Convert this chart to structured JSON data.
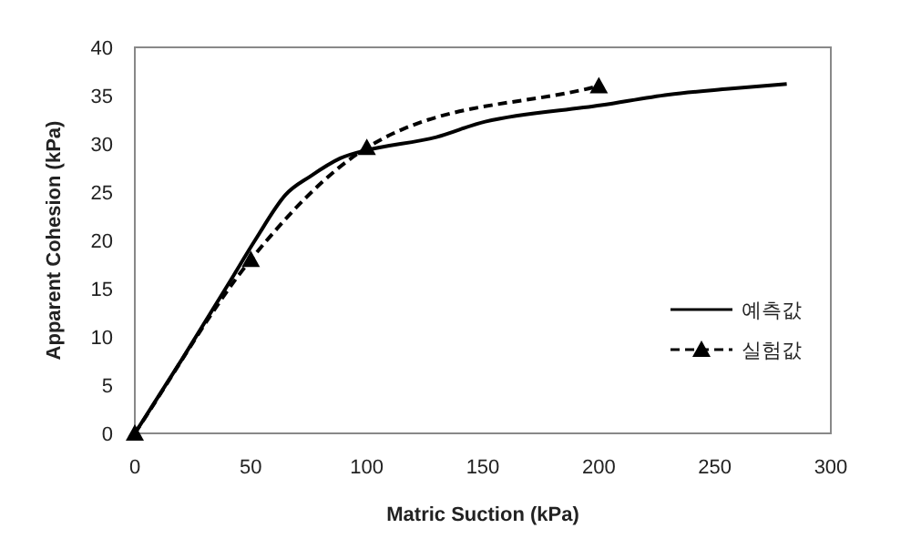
{
  "chart_data": {
    "type": "line",
    "xlabel": "Matric Suction (kPa)",
    "ylabel": "Apparent Cohesion (kPa)",
    "xlim": [
      0,
      300
    ],
    "xticks": [
      0,
      50,
      100,
      150,
      200,
      250,
      300
    ],
    "ylim": [
      0,
      40
    ],
    "yticks": [
      0,
      5,
      10,
      15,
      20,
      25,
      30,
      35,
      40
    ],
    "grid": false,
    "legend": "right",
    "series": [
      {
        "name": "예측값",
        "color": "#000000",
        "line_style": "solid",
        "marker": "none",
        "x": [
          0,
          20.4,
          41.4,
          51.8,
          64.9,
          75.4,
          88.5,
          99,
          130,
          151,
          201,
          230,
          256,
          281
        ],
        "values": [
          0,
          7.7,
          15.9,
          20,
          24.7,
          26.6,
          28.5,
          29.3,
          30.7,
          32.3,
          34,
          35.1,
          35.7,
          36.2
        ]
      },
      {
        "name": "실험값",
        "color": "#000000",
        "line_style": "dashed",
        "marker": "triangle",
        "x": [
          0,
          50,
          100,
          200
        ],
        "values": [
          0,
          18,
          29.6,
          36
        ]
      }
    ]
  }
}
